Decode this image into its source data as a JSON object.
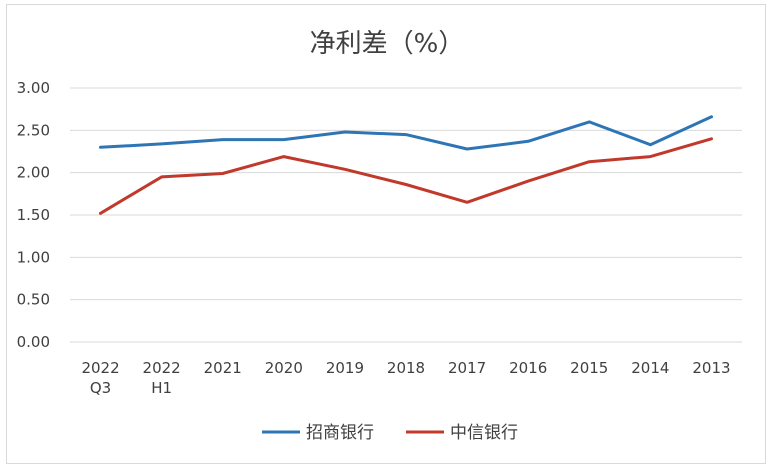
{
  "chart_data": {
    "type": "line",
    "title": "净利差（%）",
    "xlabel": "",
    "ylabel": "",
    "categories": [
      [
        "2022",
        "Q3"
      ],
      [
        "2022",
        "H1"
      ],
      [
        "2021"
      ],
      [
        "2020"
      ],
      [
        "2019"
      ],
      [
        "2018"
      ],
      [
        "2017"
      ],
      [
        "2016"
      ],
      [
        "2015"
      ],
      [
        "2014"
      ],
      [
        "2013"
      ]
    ],
    "ylim": [
      0,
      3
    ],
    "yticks": [
      "0.00",
      "0.50",
      "1.00",
      "1.50",
      "2.00",
      "2.50",
      "3.00"
    ],
    "grid": true,
    "legend_position": "bottom",
    "series": [
      {
        "name": "招商银行",
        "color": "#2e75b6",
        "values": [
          2.3,
          2.34,
          2.39,
          2.39,
          2.48,
          2.45,
          2.28,
          2.37,
          2.6,
          2.33,
          2.66
        ]
      },
      {
        "name": "中信银行",
        "color": "#c0392b",
        "values": [
          1.52,
          1.95,
          1.99,
          2.19,
          2.04,
          1.86,
          1.65,
          1.9,
          2.13,
          2.19,
          2.4
        ]
      }
    ]
  }
}
